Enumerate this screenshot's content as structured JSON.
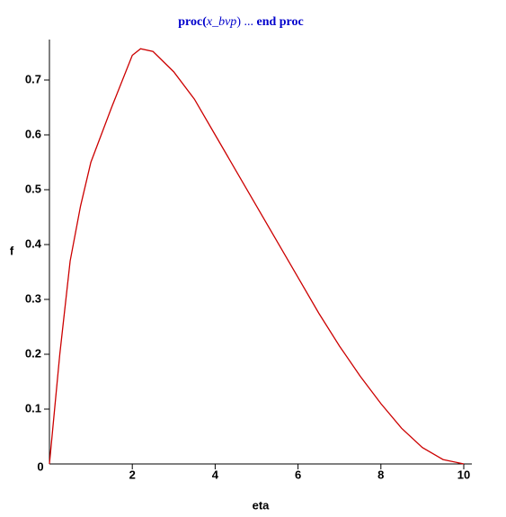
{
  "chart_data": {
    "type": "line",
    "title": [
      "proc(",
      "x_bvp",
      ")  ...  ",
      "end proc"
    ],
    "x_label": "eta",
    "y_label": "f",
    "x": [
      0,
      0.1,
      0.25,
      0.5,
      0.75,
      1,
      1.5,
      2,
      2.2,
      2.5,
      3,
      3.5,
      4,
      4.5,
      5,
      5.5,
      6,
      6.5,
      7,
      7.5,
      8,
      8.5,
      9,
      9.5,
      10
    ],
    "series": [
      {
        "color": "#cc0000",
        "values": [
          0,
          0.08,
          0.2,
          0.37,
          0.47,
          0.55,
          0.65,
          0.745,
          0.757,
          0.752,
          0.715,
          0.665,
          0.6,
          0.535,
          0.47,
          0.405,
          0.34,
          0.275,
          0.215,
          0.16,
          0.11,
          0.065,
          0.03,
          0.008,
          0
        ]
      }
    ],
    "xlim": [
      0,
      10.2
    ],
    "ylim": [
      0,
      0.77
    ],
    "xticks": [
      0,
      2,
      4,
      6,
      8,
      10
    ],
    "yticks": [
      0.1,
      0.2,
      0.3,
      0.4,
      0.5,
      0.6,
      0.7
    ],
    "title_color": "#0000cc",
    "grid": false
  }
}
